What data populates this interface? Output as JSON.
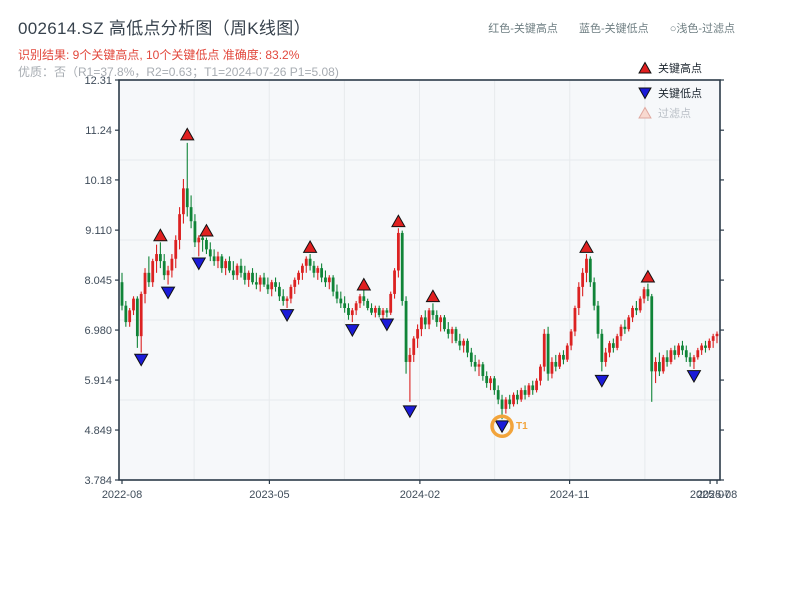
{
  "header": {
    "title": "002614.SZ 高低点分析图（周K线图）",
    "result_line": "识别结果: 9个关键高点, 10个关键低点  准确度: 83.2%",
    "quality_line": "优质：否（R1=37.8%，R2=0.63；T1=2024-07-26 P1=5.08)",
    "top_legend": [
      {
        "label": "红色-关键高点"
      },
      {
        "label": "蓝色-关键低点"
      },
      {
        "label": "○浅色-过滤点"
      }
    ]
  },
  "legend_box": {
    "items": [
      {
        "marker": "up-triangle",
        "fill": "#e02020",
        "edge": "#111111",
        "label": "关键高点",
        "text_color": "#1b252e"
      },
      {
        "marker": "down-triangle",
        "fill": "#1b1bd8",
        "edge": "#111111",
        "label": "关键低点",
        "text_color": "#1b252e"
      },
      {
        "marker": "up-triangle-light",
        "fill": "#f8d9d0",
        "edge": "#dfa89f",
        "label": "过滤点",
        "text_color": "#b9bfc6"
      }
    ]
  },
  "chart_data": {
    "type": "candlestick",
    "title": "002614.SZ 高低点分析图（周K线图）",
    "frequency": "weekly",
    "ylim": [
      3.784,
      12.31
    ],
    "grid": true,
    "colors": {
      "up": "#dc2222",
      "down": "#108438",
      "key_high": "#e02020",
      "key_low": "#1b1bd8",
      "marker_edge": "#111111",
      "annotation": "#f2a43b",
      "spine": "#2c3b49",
      "gridline": "#e7eaed",
      "plot_bg": "#f6f8fa",
      "tick_label": "#3f4c5a"
    },
    "y_ticks": [
      {
        "label": "12.31",
        "value": 12.31
      },
      {
        "label": "11.24",
        "value": 11.24
      },
      {
        "label": "10.18",
        "value": 10.18
      },
      {
        "label": "9.110",
        "value": 9.11
      },
      {
        "label": "8.045",
        "value": 8.045
      },
      {
        "label": "6.980",
        "value": 6.98
      },
      {
        "label": "5.914",
        "value": 5.914
      },
      {
        "label": "4.849",
        "value": 4.849
      },
      {
        "label": "3.784",
        "value": 3.784
      }
    ],
    "x_ticks": [
      {
        "label": "2022-08",
        "week": 0
      },
      {
        "label": "2023-05",
        "week": 38.4
      },
      {
        "label": "2024-02",
        "week": 77.6
      },
      {
        "label": "2024-11",
        "week": 116.6
      },
      {
        "label": "2025-07",
        "week": 153.2
      },
      {
        "label": "2025-08",
        "week": 155
      }
    ],
    "candles": [
      [
        8.0,
        8.2,
        7.4,
        7.5
      ],
      [
        7.5,
        7.6,
        7.05,
        7.15
      ],
      [
        7.15,
        7.45,
        7.05,
        7.4
      ],
      [
        7.4,
        7.7,
        7.3,
        7.65
      ],
      [
        7.65,
        7.7,
        6.6,
        6.85
      ],
      [
        6.85,
        7.8,
        6.5,
        7.75
      ],
      [
        7.75,
        8.3,
        7.55,
        8.2
      ],
      [
        8.2,
        8.55,
        7.9,
        8.0
      ],
      [
        8.0,
        8.5,
        7.9,
        8.45
      ],
      [
        8.45,
        8.8,
        8.2,
        8.6
      ],
      [
        8.6,
        8.85,
        8.3,
        8.45
      ],
      [
        8.45,
        8.6,
        8.05,
        8.15
      ],
      [
        8.15,
        8.35,
        7.95,
        8.25
      ],
      [
        8.25,
        8.6,
        8.1,
        8.5
      ],
      [
        8.5,
        9.0,
        8.3,
        8.9
      ],
      [
        8.9,
        9.6,
        8.7,
        9.45
      ],
      [
        9.45,
        10.2,
        9.25,
        10.0
      ],
      [
        10.0,
        10.97,
        9.4,
        9.6
      ],
      [
        9.6,
        9.85,
        9.15,
        9.3
      ],
      [
        9.3,
        9.45,
        8.75,
        8.85
      ],
      [
        8.85,
        9.0,
        8.55,
        8.95
      ],
      [
        8.95,
        9.0,
        8.65,
        8.9
      ],
      [
        8.9,
        8.95,
        8.6,
        8.7
      ],
      [
        8.7,
        8.85,
        8.45,
        8.55
      ],
      [
        8.55,
        8.7,
        8.35,
        8.45
      ],
      [
        8.45,
        8.65,
        8.3,
        8.55
      ],
      [
        8.55,
        8.6,
        8.2,
        8.3
      ],
      [
        8.3,
        8.5,
        8.15,
        8.45
      ],
      [
        8.45,
        8.55,
        8.2,
        8.25
      ],
      [
        8.25,
        8.45,
        8.05,
        8.15
      ],
      [
        8.15,
        8.4,
        8.05,
        8.35
      ],
      [
        8.35,
        8.5,
        8.1,
        8.2
      ],
      [
        8.2,
        8.35,
        7.95,
        8.05
      ],
      [
        8.05,
        8.25,
        7.9,
        8.2
      ],
      [
        8.2,
        8.3,
        7.95,
        8.0
      ],
      [
        8.0,
        8.2,
        7.85,
        7.95
      ],
      [
        7.95,
        8.15,
        7.8,
        8.1
      ],
      [
        8.1,
        8.2,
        7.9,
        7.95
      ],
      [
        7.95,
        8.1,
        7.75,
        7.85
      ],
      [
        7.85,
        8.05,
        7.7,
        8.0
      ],
      [
        8.0,
        8.1,
        7.8,
        7.9
      ],
      [
        7.9,
        8.0,
        7.6,
        7.7
      ],
      [
        7.7,
        7.85,
        7.5,
        7.6
      ],
      [
        7.6,
        7.7,
        7.45,
        7.65
      ],
      [
        7.65,
        7.95,
        7.55,
        7.9
      ],
      [
        7.9,
        8.1,
        7.75,
        8.05
      ],
      [
        8.05,
        8.25,
        7.95,
        8.2
      ],
      [
        8.2,
        8.4,
        8.05,
        8.35
      ],
      [
        8.35,
        8.55,
        8.2,
        8.5
      ],
      [
        8.5,
        8.6,
        8.25,
        8.35
      ],
      [
        8.35,
        8.45,
        8.1,
        8.2
      ],
      [
        8.2,
        8.35,
        8.05,
        8.3
      ],
      [
        8.3,
        8.4,
        8.0,
        8.1
      ],
      [
        8.1,
        8.25,
        7.9,
        8.0
      ],
      [
        8.0,
        8.15,
        7.85,
        8.1
      ],
      [
        8.1,
        8.15,
        7.7,
        7.8
      ],
      [
        7.8,
        7.95,
        7.55,
        7.65
      ],
      [
        7.65,
        7.8,
        7.45,
        7.55
      ],
      [
        7.55,
        7.7,
        7.35,
        7.45
      ],
      [
        7.45,
        7.55,
        7.2,
        7.3
      ],
      [
        7.3,
        7.45,
        7.15,
        7.4
      ],
      [
        7.4,
        7.6,
        7.3,
        7.55
      ],
      [
        7.55,
        7.75,
        7.45,
        7.7
      ],
      [
        7.7,
        7.85,
        7.5,
        7.6
      ],
      [
        7.6,
        7.65,
        7.4,
        7.45
      ],
      [
        7.45,
        7.55,
        7.3,
        7.35
      ],
      [
        7.35,
        7.5,
        7.25,
        7.45
      ],
      [
        7.45,
        7.5,
        7.25,
        7.3
      ],
      [
        7.3,
        7.45,
        7.2,
        7.4
      ],
      [
        7.4,
        7.45,
        7.25,
        7.35
      ],
      [
        7.35,
        7.8,
        7.3,
        7.75
      ],
      [
        7.75,
        8.3,
        7.65,
        8.25
      ],
      [
        8.25,
        9.15,
        8.1,
        9.05
      ],
      [
        9.05,
        9.1,
        7.5,
        7.6
      ],
      [
        7.6,
        7.7,
        6.05,
        6.3
      ],
      [
        6.3,
        6.6,
        5.45,
        6.45
      ],
      [
        6.45,
        6.85,
        6.3,
        6.8
      ],
      [
        6.8,
        7.1,
        6.6,
        7.0
      ],
      [
        7.0,
        7.3,
        6.85,
        7.25
      ],
      [
        7.25,
        7.4,
        7.0,
        7.1
      ],
      [
        7.1,
        7.45,
        7.0,
        7.4
      ],
      [
        7.4,
        7.55,
        7.2,
        7.3
      ],
      [
        7.3,
        7.4,
        7.05,
        7.15
      ],
      [
        7.15,
        7.3,
        6.95,
        7.25
      ],
      [
        7.25,
        7.3,
        6.95,
        7.0
      ],
      [
        7.0,
        7.15,
        6.8,
        6.9
      ],
      [
        6.9,
        7.05,
        6.7,
        7.0
      ],
      [
        7.0,
        7.05,
        6.7,
        6.75
      ],
      [
        6.75,
        6.9,
        6.55,
        6.65
      ],
      [
        6.65,
        6.8,
        6.5,
        6.75
      ],
      [
        6.75,
        6.8,
        6.4,
        6.5
      ],
      [
        6.5,
        6.6,
        6.2,
        6.3
      ],
      [
        6.3,
        6.45,
        6.1,
        6.2
      ],
      [
        6.2,
        6.35,
        6.0,
        6.25
      ],
      [
        6.25,
        6.3,
        5.9,
        6.0
      ],
      [
        6.0,
        6.1,
        5.75,
        5.85
      ],
      [
        5.85,
        6.0,
        5.7,
        5.95
      ],
      [
        5.95,
        6.0,
        5.6,
        5.7
      ],
      [
        5.7,
        5.8,
        5.4,
        5.5
      ],
      [
        5.5,
        5.6,
        5.08,
        5.3
      ],
      [
        5.3,
        5.55,
        5.2,
        5.5
      ],
      [
        5.5,
        5.6,
        5.3,
        5.4
      ],
      [
        5.4,
        5.65,
        5.35,
        5.6
      ],
      [
        5.6,
        5.7,
        5.4,
        5.5
      ],
      [
        5.5,
        5.75,
        5.45,
        5.7
      ],
      [
        5.7,
        5.8,
        5.5,
        5.6
      ],
      [
        5.6,
        5.85,
        5.55,
        5.8
      ],
      [
        5.8,
        5.9,
        5.6,
        5.7
      ],
      [
        5.7,
        5.95,
        5.65,
        5.9
      ],
      [
        5.9,
        6.25,
        5.8,
        6.2
      ],
      [
        6.2,
        7.0,
        6.1,
        6.9
      ],
      [
        6.9,
        7.05,
        5.9,
        6.05
      ],
      [
        6.05,
        6.4,
        5.95,
        6.3
      ],
      [
        6.3,
        6.45,
        6.1,
        6.2
      ],
      [
        6.2,
        6.5,
        6.15,
        6.45
      ],
      [
        6.45,
        6.55,
        6.25,
        6.35
      ],
      [
        6.35,
        6.7,
        6.3,
        6.65
      ],
      [
        6.65,
        7.0,
        6.55,
        6.95
      ],
      [
        6.95,
        7.5,
        6.85,
        7.45
      ],
      [
        7.45,
        8.0,
        7.3,
        7.9
      ],
      [
        7.9,
        8.3,
        7.7,
        8.2
      ],
      [
        8.2,
        8.6,
        8.0,
        8.5
      ],
      [
        8.5,
        8.55,
        7.9,
        8.0
      ],
      [
        8.0,
        8.1,
        7.4,
        7.5
      ],
      [
        7.5,
        7.6,
        6.8,
        6.9
      ],
      [
        6.9,
        7.0,
        6.1,
        6.3
      ],
      [
        6.3,
        6.6,
        6.2,
        6.5
      ],
      [
        6.5,
        6.75,
        6.4,
        6.7
      ],
      [
        6.7,
        6.8,
        6.5,
        6.6
      ],
      [
        6.6,
        6.9,
        6.55,
        6.85
      ],
      [
        6.85,
        7.1,
        6.75,
        7.05
      ],
      [
        7.05,
        7.2,
        6.9,
        7.0
      ],
      [
        7.0,
        7.3,
        6.95,
        7.25
      ],
      [
        7.25,
        7.5,
        7.15,
        7.45
      ],
      [
        7.45,
        7.6,
        7.3,
        7.4
      ],
      [
        7.4,
        7.7,
        7.35,
        7.65
      ],
      [
        7.65,
        7.9,
        7.55,
        7.85
      ],
      [
        7.85,
        7.97,
        7.6,
        7.7
      ],
      [
        7.7,
        7.75,
        5.45,
        6.1
      ],
      [
        6.1,
        6.4,
        5.85,
        6.3
      ],
      [
        6.3,
        6.5,
        6.0,
        6.1
      ],
      [
        6.1,
        6.45,
        6.05,
        6.4
      ],
      [
        6.4,
        6.55,
        6.2,
        6.3
      ],
      [
        6.3,
        6.6,
        6.25,
        6.55
      ],
      [
        6.55,
        6.65,
        6.35,
        6.45
      ],
      [
        6.45,
        6.7,
        6.4,
        6.65
      ],
      [
        6.65,
        6.75,
        6.45,
        6.55
      ],
      [
        6.55,
        6.65,
        6.3,
        6.4
      ],
      [
        6.4,
        6.5,
        6.2,
        6.3
      ],
      [
        6.3,
        6.45,
        6.15,
        6.4
      ],
      [
        6.4,
        6.6,
        6.35,
        6.55
      ],
      [
        6.55,
        6.7,
        6.45,
        6.65
      ],
      [
        6.65,
        6.75,
        6.5,
        6.6
      ],
      [
        6.6,
        6.8,
        6.55,
        6.75
      ],
      [
        6.75,
        6.9,
        6.6,
        6.85
      ],
      [
        6.85,
        6.95,
        6.7,
        6.9
      ]
    ],
    "key_highs": [
      {
        "week": 10,
        "price": 9.0
      },
      {
        "week": 17,
        "price": 11.15
      },
      {
        "week": 22,
        "price": 9.1
      },
      {
        "week": 49,
        "price": 8.75
      },
      {
        "week": 63,
        "price": 7.95
      },
      {
        "week": 72,
        "price": 9.3
      },
      {
        "week": 81,
        "price": 7.7
      },
      {
        "week": 121,
        "price": 8.75
      },
      {
        "week": 137,
        "price": 8.12
      }
    ],
    "key_lows": [
      {
        "week": 5,
        "price": 6.35
      },
      {
        "week": 12,
        "price": 7.78
      },
      {
        "week": 20,
        "price": 8.4
      },
      {
        "week": 43,
        "price": 7.3
      },
      {
        "week": 60,
        "price": 6.98
      },
      {
        "week": 69,
        "price": 7.1
      },
      {
        "week": 75,
        "price": 5.25
      },
      {
        "week": 99,
        "price": 4.93
      },
      {
        "week": 125,
        "price": 5.9
      },
      {
        "week": 149,
        "price": 6.0
      }
    ],
    "annotation": {
      "week": 99,
      "price": 4.93,
      "label": "T1"
    }
  }
}
